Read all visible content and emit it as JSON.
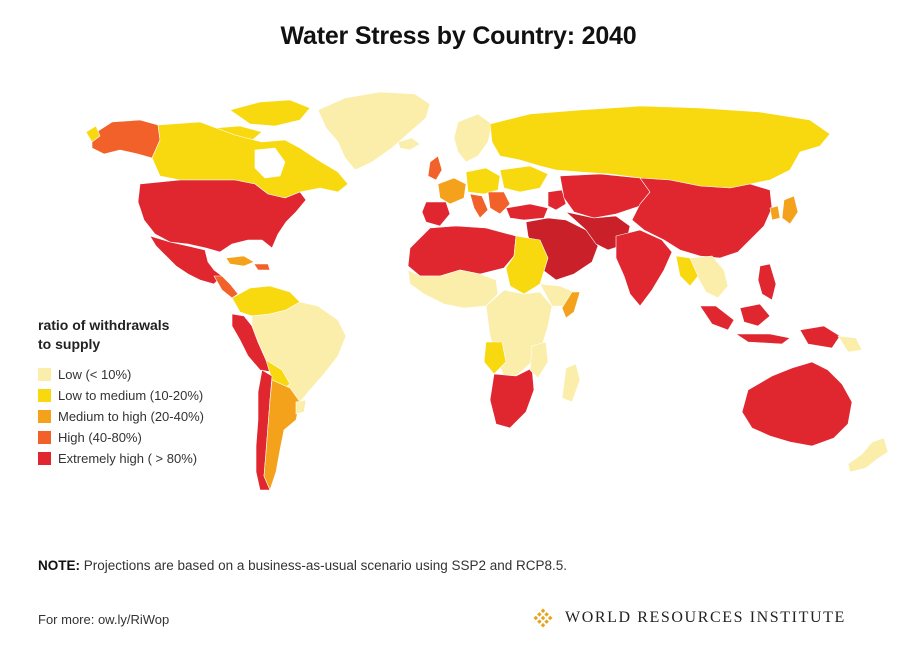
{
  "title": "Water Stress by Country: 2040",
  "legend": {
    "title_line1": "ratio of withdrawals",
    "title_line2": "to supply",
    "items": [
      {
        "label": "Low (< 10%)",
        "color": "#fbeeaa"
      },
      {
        "label": "Low to medium (10-20%)",
        "color": "#f8d90f"
      },
      {
        "label": "Medium to high  (20-40%)",
        "color": "#f4a21c"
      },
      {
        "label": "High (40-80%)",
        "color": "#f2612a"
      },
      {
        "label": "Extremely high ( > 80%)",
        "color": "#e02730"
      }
    ]
  },
  "note": {
    "prefix": "NOTE:",
    "text": " Projections are based on a business-as-usual scenario using SSP2 and RCP8.5."
  },
  "for_more": "For more: ow.ly/RiWop",
  "logo": {
    "name": "WORLD RESOURCES INSTITUTE",
    "icon": "wri-diamond-logo",
    "color": "#e8a21c"
  },
  "map_colors": {
    "low": "#fbeeaa",
    "low_medium": "#f8d90f",
    "medium_high": "#f4a21c",
    "high": "#f2612a",
    "extremely_high": "#e02730",
    "dark_red": "#c9202a",
    "border": "#b9a77a"
  }
}
